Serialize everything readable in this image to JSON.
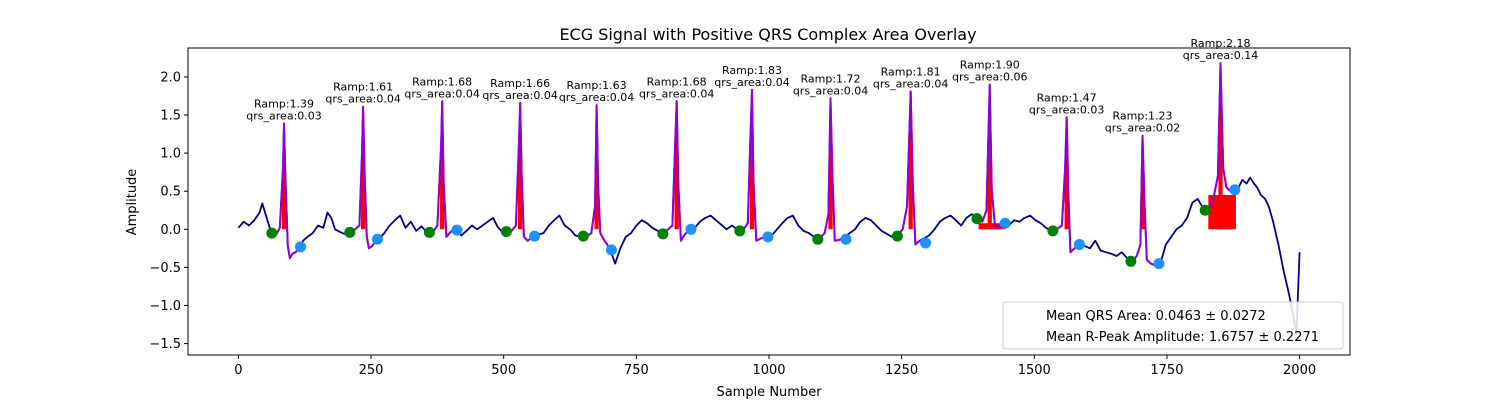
{
  "chart_data": {
    "type": "line",
    "title": "ECG Signal with Positive QRS Complex Area Overlay",
    "xlabel": "Sample Number",
    "ylabel": "Amplitude",
    "xlim": [
      -95,
      2095
    ],
    "ylim": [
      -1.65,
      2.38
    ],
    "xticks": [
      0,
      250,
      500,
      750,
      1000,
      1250,
      1500,
      1750,
      2000
    ],
    "yticks": [
      -1.5,
      -1.0,
      -0.5,
      0.0,
      0.5,
      1.0,
      1.5,
      2.0
    ],
    "ytick_labels": [
      "−1.5",
      "−1.0",
      "−0.5",
      "0.0",
      "0.5",
      "1.0",
      "1.5",
      "2.0"
    ],
    "colors": {
      "signal": "#00008b",
      "qrs_segment": "#9400d3",
      "area_fill": "#ff0000",
      "q_point": "#008000",
      "s_point": "#1e90ff"
    },
    "signal_knots": [
      [
        0,
        0.02
      ],
      [
        10,
        0.1
      ],
      [
        20,
        0.05
      ],
      [
        30,
        0.12
      ],
      [
        40,
        0.22
      ],
      [
        45,
        0.34
      ],
      [
        52,
        0.18
      ],
      [
        60,
        0.0
      ],
      [
        66,
        -0.05
      ],
      [
        72,
        -0.06
      ],
      [
        78,
        0.02
      ],
      [
        84,
        0.8
      ],
      [
        86,
        1.39
      ],
      [
        89,
        0.6
      ],
      [
        93,
        -0.22
      ],
      [
        97,
        -0.38
      ],
      [
        102,
        -0.32
      ],
      [
        108,
        -0.3
      ],
      [
        116,
        -0.22
      ],
      [
        122,
        -0.15
      ],
      [
        130,
        -0.1
      ],
      [
        140,
        -0.05
      ],
      [
        150,
        0.05
      ],
      [
        160,
        0.02
      ],
      [
        168,
        0.22
      ],
      [
        175,
        0.15
      ],
      [
        182,
        0.0
      ],
      [
        190,
        -0.03
      ],
      [
        200,
        -0.06
      ],
      [
        210,
        -0.05
      ],
      [
        220,
        0.0
      ],
      [
        228,
        0.05
      ],
      [
        233,
        1.0
      ],
      [
        235,
        1.61
      ],
      [
        238,
        0.7
      ],
      [
        242,
        -0.1
      ],
      [
        246,
        -0.25
      ],
      [
        252,
        -0.22
      ],
      [
        258,
        -0.16
      ],
      [
        266,
        -0.12
      ],
      [
        275,
        -0.05
      ],
      [
        285,
        0.05
      ],
      [
        295,
        0.12
      ],
      [
        305,
        0.18
      ],
      [
        315,
        0.02
      ],
      [
        325,
        0.1
      ],
      [
        335,
        -0.02
      ],
      [
        345,
        0.04
      ],
      [
        355,
        -0.04
      ],
      [
        365,
        -0.05
      ],
      [
        375,
        0.05
      ],
      [
        382,
        1.1
      ],
      [
        384,
        1.68
      ],
      [
        387,
        0.6
      ],
      [
        392,
        -0.1
      ],
      [
        398,
        -0.05
      ],
      [
        405,
        0.0
      ],
      [
        412,
        -0.01
      ],
      [
        420,
        -0.08
      ],
      [
        430,
        -0.02
      ],
      [
        440,
        0.05
      ],
      [
        450,
        0.0
      ],
      [
        460,
        0.05
      ],
      [
        470,
        0.1
      ],
      [
        480,
        0.15
      ],
      [
        488,
        0.04
      ],
      [
        495,
        -0.02
      ],
      [
        505,
        -0.03
      ],
      [
        515,
        -0.02
      ],
      [
        523,
        0.05
      ],
      [
        528,
        1.0
      ],
      [
        531,
        1.66
      ],
      [
        534,
        0.7
      ],
      [
        538,
        -0.1
      ],
      [
        545,
        -0.15
      ],
      [
        555,
        -0.1
      ],
      [
        565,
        -0.07
      ],
      [
        575,
        -0.05
      ],
      [
        585,
        0.05
      ],
      [
        595,
        0.12
      ],
      [
        605,
        0.18
      ],
      [
        615,
        0.05
      ],
      [
        625,
        0.0
      ],
      [
        635,
        -0.08
      ],
      [
        645,
        -0.1
      ],
      [
        655,
        -0.1
      ],
      [
        665,
        -0.05
      ],
      [
        672,
        0.3
      ],
      [
        675,
        1.63
      ],
      [
        678,
        0.6
      ],
      [
        682,
        -0.05
      ],
      [
        690,
        -0.15
      ],
      [
        700,
        -0.25
      ],
      [
        710,
        -0.45
      ],
      [
        720,
        -0.25
      ],
      [
        730,
        -0.1
      ],
      [
        740,
        -0.05
      ],
      [
        750,
        0.05
      ],
      [
        760,
        0.12
      ],
      [
        770,
        0.08
      ],
      [
        780,
        0.02
      ],
      [
        790,
        -0.02
      ],
      [
        800,
        -0.06
      ],
      [
        810,
        0.0
      ],
      [
        818,
        0.05
      ],
      [
        823,
        1.1
      ],
      [
        826,
        1.68
      ],
      [
        829,
        0.6
      ],
      [
        834,
        -0.15
      ],
      [
        840,
        -0.08
      ],
      [
        850,
        0.0
      ],
      [
        860,
        0.02
      ],
      [
        870,
        0.1
      ],
      [
        880,
        0.15
      ],
      [
        890,
        0.18
      ],
      [
        900,
        0.12
      ],
      [
        910,
        0.06
      ],
      [
        920,
        0.0
      ],
      [
        930,
        0.05
      ],
      [
        940,
        0.0
      ],
      [
        950,
        -0.02
      ],
      [
        960,
        0.08
      ],
      [
        965,
        1.2
      ],
      [
        968,
        1.83
      ],
      [
        971,
        0.6
      ],
      [
        976,
        -0.15
      ],
      [
        985,
        -0.12
      ],
      [
        995,
        -0.1
      ],
      [
        1005,
        -0.08
      ],
      [
        1015,
        0.0
      ],
      [
        1025,
        0.08
      ],
      [
        1035,
        0.15
      ],
      [
        1045,
        0.18
      ],
      [
        1055,
        0.05
      ],
      [
        1065,
        -0.02
      ],
      [
        1075,
        -0.05
      ],
      [
        1085,
        -0.1
      ],
      [
        1095,
        -0.12
      ],
      [
        1105,
        -0.05
      ],
      [
        1112,
        0.2
      ],
      [
        1116,
        1.72
      ],
      [
        1120,
        0.6
      ],
      [
        1124,
        -0.15
      ],
      [
        1132,
        -0.14
      ],
      [
        1142,
        -0.1
      ],
      [
        1152,
        -0.05
      ],
      [
        1162,
        0.0
      ],
      [
        1172,
        0.1
      ],
      [
        1182,
        0.15
      ],
      [
        1192,
        0.12
      ],
      [
        1202,
        0.05
      ],
      [
        1212,
        -0.02
      ],
      [
        1222,
        -0.06
      ],
      [
        1232,
        -0.1
      ],
      [
        1242,
        -0.08
      ],
      [
        1252,
        0.0
      ],
      [
        1260,
        0.3
      ],
      [
        1267,
        1.81
      ],
      [
        1271,
        0.6
      ],
      [
        1276,
        -0.2
      ],
      [
        1284,
        -0.15
      ],
      [
        1292,
        -0.12
      ],
      [
        1302,
        -0.08
      ],
      [
        1312,
        0.0
      ],
      [
        1322,
        0.1
      ],
      [
        1332,
        0.15
      ],
      [
        1342,
        0.18
      ],
      [
        1352,
        0.12
      ],
      [
        1362,
        0.05
      ],
      [
        1372,
        0.15
      ],
      [
        1382,
        0.2
      ],
      [
        1392,
        0.15
      ],
      [
        1402,
        0.1
      ],
      [
        1410,
        0.25
      ],
      [
        1416,
        1.9
      ],
      [
        1420,
        0.5
      ],
      [
        1426,
        0.05
      ],
      [
        1432,
        0.02
      ],
      [
        1442,
        0.08
      ],
      [
        1452,
        0.05
      ],
      [
        1462,
        0.12
      ],
      [
        1472,
        0.1
      ],
      [
        1482,
        0.15
      ],
      [
        1492,
        0.18
      ],
      [
        1502,
        0.12
      ],
      [
        1512,
        0.08
      ],
      [
        1522,
        0.02
      ],
      [
        1532,
        -0.02
      ],
      [
        1542,
        0.0
      ],
      [
        1552,
        0.05
      ],
      [
        1558,
        0.8
      ],
      [
        1561,
        1.47
      ],
      [
        1564,
        0.5
      ],
      [
        1568,
        -0.3
      ],
      [
        1576,
        -0.25
      ],
      [
        1585,
        -0.2
      ],
      [
        1595,
        -0.22
      ],
      [
        1605,
        -0.25
      ],
      [
        1615,
        -0.15
      ],
      [
        1625,
        -0.28
      ],
      [
        1635,
        -0.3
      ],
      [
        1645,
        -0.32
      ],
      [
        1655,
        -0.35
      ],
      [
        1665,
        -0.3
      ],
      [
        1675,
        -0.38
      ],
      [
        1685,
        -0.42
      ],
      [
        1693,
        -0.35
      ],
      [
        1700,
        -0.2
      ],
      [
        1704,
        1.23
      ],
      [
        1708,
        0.3
      ],
      [
        1712,
        -0.4
      ],
      [
        1720,
        -0.45
      ],
      [
        1730,
        -0.48
      ],
      [
        1738,
        -0.44
      ],
      [
        1748,
        -0.2
      ],
      [
        1758,
        -0.1
      ],
      [
        1768,
        0.0
      ],
      [
        1778,
        0.05
      ],
      [
        1788,
        0.15
      ],
      [
        1798,
        0.35
      ],
      [
        1808,
        0.4
      ],
      [
        1818,
        0.28
      ],
      [
        1826,
        0.25
      ],
      [
        1836,
        0.35
      ],
      [
        1846,
        0.7
      ],
      [
        1851,
        2.18
      ],
      [
        1856,
        0.8
      ],
      [
        1862,
        0.55
      ],
      [
        1870,
        0.5
      ],
      [
        1878,
        0.45
      ],
      [
        1885,
        0.55
      ],
      [
        1892,
        0.65
      ],
      [
        1900,
        0.6
      ],
      [
        1907,
        0.68
      ],
      [
        1914,
        0.6
      ],
      [
        1920,
        0.55
      ],
      [
        1927,
        0.45
      ],
      [
        1935,
        0.4
      ],
      [
        1942,
        0.3
      ],
      [
        1950,
        0.1
      ],
      [
        1960,
        -0.2
      ],
      [
        1970,
        -0.55
      ],
      [
        1980,
        -0.85
      ],
      [
        1990,
        -1.2
      ],
      [
        1994,
        -1.38
      ],
      [
        2000,
        -0.3
      ]
    ],
    "beats": [
      {
        "q": [
          63,
          -0.05
        ],
        "r": [
          86,
          1.39
        ],
        "s": [
          117,
          -0.23
        ],
        "r_label": "Ramp:1.39",
        "area_label": "qrs_area:0.03"
      },
      {
        "q": [
          210,
          -0.04
        ],
        "r": [
          235,
          1.61
        ],
        "s": [
          262,
          -0.13
        ],
        "r_label": "Ramp:1.61",
        "area_label": "qrs_area:0.04"
      },
      {
        "q": [
          360,
          -0.04
        ],
        "r": [
          384,
          1.68
        ],
        "s": [
          412,
          -0.01
        ],
        "r_label": "Ramp:1.68",
        "area_label": "qrs_area:0.04"
      },
      {
        "q": [
          505,
          -0.03
        ],
        "r": [
          531,
          1.66
        ],
        "s": [
          558,
          -0.09
        ],
        "r_label": "Ramp:1.66",
        "area_label": "qrs_area:0.04"
      },
      {
        "q": [
          650,
          -0.09
        ],
        "r": [
          675,
          1.63
        ],
        "s": [
          703,
          -0.27
        ],
        "r_label": "Ramp:1.63",
        "area_label": "qrs_area:0.04"
      },
      {
        "q": [
          800,
          -0.06
        ],
        "r": [
          826,
          1.68
        ],
        "s": [
          853,
          0.0
        ],
        "r_label": "Ramp:1.68",
        "area_label": "qrs_area:0.04"
      },
      {
        "q": [
          945,
          -0.02
        ],
        "r": [
          968,
          1.83
        ],
        "s": [
          998,
          -0.1
        ],
        "r_label": "Ramp:1.83",
        "area_label": "qrs_area:0.04"
      },
      {
        "q": [
          1092,
          -0.13
        ],
        "r": [
          1116,
          1.72
        ],
        "s": [
          1145,
          -0.13
        ],
        "r_label": "Ramp:1.72",
        "area_label": "qrs_area:0.04"
      },
      {
        "q": [
          1242,
          -0.09
        ],
        "r": [
          1267,
          1.81
        ],
        "s": [
          1295,
          -0.18
        ],
        "r_label": "Ramp:1.81",
        "area_label": "qrs_area:0.04"
      },
      {
        "q": [
          1392,
          0.14
        ],
        "r": [
          1416,
          1.9
        ],
        "s": [
          1445,
          0.08
        ],
        "r_label": "Ramp:1.90",
        "area_label": "qrs_area:0.06"
      },
      {
        "q": [
          1535,
          -0.02
        ],
        "r": [
          1561,
          1.47
        ],
        "s": [
          1585,
          -0.2
        ],
        "r_label": "Ramp:1.47",
        "area_label": "qrs_area:0.03"
      },
      {
        "q": [
          1682,
          -0.42
        ],
        "r": [
          1704,
          1.23
        ],
        "s": [
          1735,
          -0.45
        ],
        "r_label": "Ramp:1.23",
        "area_label": "qrs_area:0.02"
      },
      {
        "q": [
          1822,
          0.25
        ],
        "r": [
          1851,
          2.18
        ],
        "s": [
          1878,
          0.52
        ],
        "r_label": "Ramp:2.18",
        "area_label": "qrs_area:0.14"
      }
    ],
    "area_fills": [
      {
        "x0": 1395,
        "x1": 1445,
        "top": 0.08
      },
      {
        "x0": 1828,
        "x1": 1880,
        "top": 0.45
      }
    ],
    "legend": {
      "position": "lower-right",
      "entries": [
        "Mean QRS Area: 0.0463 ± 0.0272",
        "Mean R-Peak Amplitude: 1.6757 ± 0.2271"
      ]
    }
  }
}
